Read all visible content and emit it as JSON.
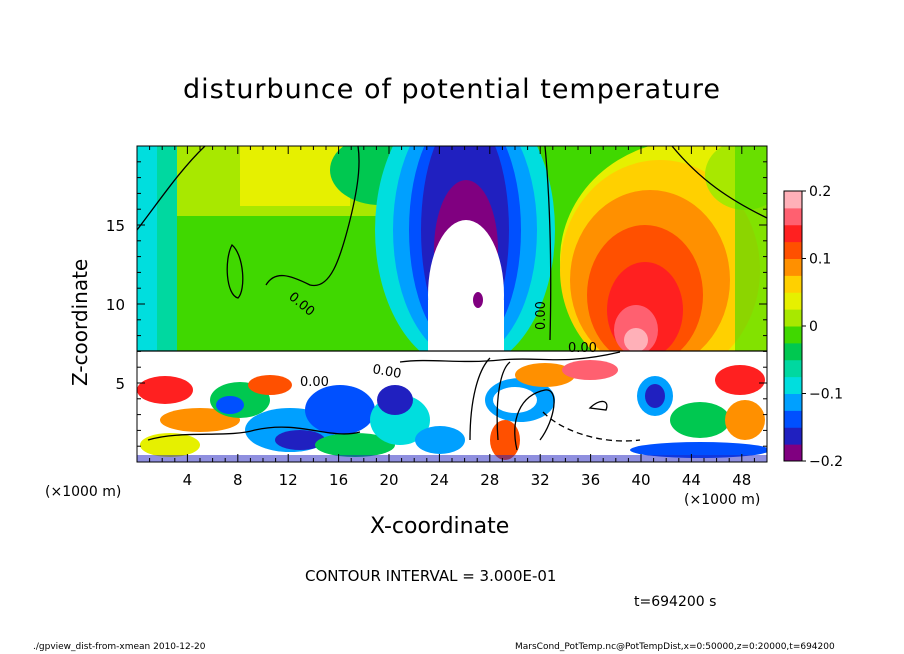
{
  "chart_data": {
    "type": "heatmap",
    "title": "disturbunce of potential temperature",
    "xlabel": "X-coordinate",
    "ylabel": "Z-coordinate",
    "x_unit_label": "(×1000 m)",
    "xlim": [
      0,
      50
    ],
    "ylim": [
      0,
      20
    ],
    "x_ticks": [
      4,
      8,
      12,
      16,
      20,
      24,
      28,
      32,
      36,
      40,
      44,
      48
    ],
    "y_ticks": [
      5,
      10,
      15
    ],
    "colorbar": {
      "range": [
        -0.2,
        0.2
      ],
      "ticks": [
        0.2,
        0.1,
        0,
        -0.1,
        -0.2
      ],
      "tick_labels": [
        "0.2",
        "0.1",
        "0",
        "−0.1",
        "−0.2"
      ],
      "colors": [
        "#800080",
        "#2020c0",
        "#0050ff",
        "#00a0ff",
        "#00dede",
        "#00d8a0",
        "#00c850",
        "#40d800",
        "#a8e800",
        "#e6f000",
        "#ffd000",
        "#ff9000",
        "#ff5000",
        "#ff2020",
        "#ff6070",
        "#ffb0b8"
      ]
    },
    "contour_labels": [
      "0.00",
      "0.00",
      "0.00",
      "0.00",
      "0.00"
    ],
    "contour_interval_text": "CONTOUR INTERVAL = 3.000E-01",
    "time_text": "t=694200 s",
    "footer_left": "./gpview_dist-from-xmean  2010-12-20",
    "footer_right": "MarsCond_PotTemp.nc@PotTempDist,x=0:50000,z=0:20000,t=694200"
  }
}
